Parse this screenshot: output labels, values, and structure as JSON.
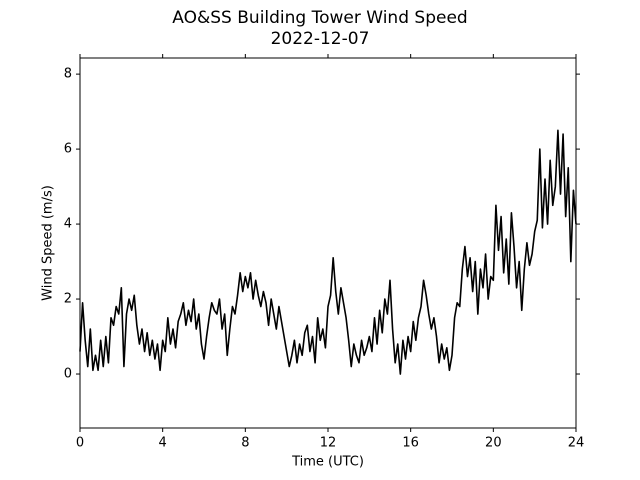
{
  "chart_data": {
    "type": "line",
    "title": "AO&SS Building Tower Wind Speed",
    "subtitle": "2022-12-07",
    "xlabel": "Time (UTC)",
    "ylabel": "Wind Speed (m/s)",
    "xlim": [
      0,
      24
    ],
    "xticks": [
      0,
      4,
      8,
      12,
      16,
      20,
      24
    ],
    "ylim": [
      -1.44,
      8.43
    ],
    "yticks": [
      0,
      2,
      4,
      6,
      8
    ],
    "grid": false,
    "series": [
      {
        "color": "#000000",
        "x": [
          0,
          0.125,
          0.25,
          0.375,
          0.5,
          0.625,
          0.75,
          0.875,
          1,
          1.125,
          1.25,
          1.375,
          1.5,
          1.625,
          1.75,
          1.875,
          2,
          2.125,
          2.25,
          2.375,
          2.5,
          2.625,
          2.75,
          2.875,
          3,
          3.125,
          3.25,
          3.375,
          3.5,
          3.625,
          3.75,
          3.875,
          4,
          4.125,
          4.25,
          4.375,
          4.5,
          4.625,
          4.75,
          4.875,
          5,
          5.125,
          5.25,
          5.375,
          5.5,
          5.625,
          5.75,
          5.875,
          6,
          6.125,
          6.25,
          6.375,
          6.5,
          6.625,
          6.75,
          6.875,
          7,
          7.125,
          7.25,
          7.375,
          7.5,
          7.625,
          7.75,
          7.875,
          8,
          8.125,
          8.25,
          8.375,
          8.5,
          8.625,
          8.75,
          8.875,
          9,
          9.125,
          9.25,
          9.375,
          9.5,
          9.625,
          9.75,
          9.875,
          10,
          10.125,
          10.25,
          10.375,
          10.5,
          10.625,
          10.75,
          10.875,
          11,
          11.125,
          11.25,
          11.375,
          11.5,
          11.625,
          11.75,
          11.875,
          12,
          12.125,
          12.25,
          12.375,
          12.5,
          12.625,
          12.75,
          12.875,
          13,
          13.125,
          13.25,
          13.375,
          13.5,
          13.625,
          13.75,
          13.875,
          14,
          14.125,
          14.25,
          14.375,
          14.5,
          14.625,
          14.75,
          14.875,
          15,
          15.125,
          15.25,
          15.375,
          15.5,
          15.625,
          15.75,
          15.875,
          16,
          16.125,
          16.25,
          16.375,
          16.5,
          16.625,
          16.75,
          16.875,
          17,
          17.125,
          17.25,
          17.375,
          17.5,
          17.625,
          17.75,
          17.875,
          18,
          18.125,
          18.25,
          18.375,
          18.5,
          18.625,
          18.75,
          18.875,
          19,
          19.125,
          19.25,
          19.375,
          19.5,
          19.625,
          19.75,
          19.875,
          20,
          20.125,
          20.25,
          20.375,
          20.5,
          20.625,
          20.75,
          20.875,
          21,
          21.125,
          21.25,
          21.375,
          21.5,
          21.625,
          21.75,
          21.875,
          22,
          22.125,
          22.25,
          22.375,
          22.5,
          22.625,
          22.75,
          22.875,
          23,
          23.125,
          23.25,
          23.375,
          23.5,
          23.625,
          23.75,
          23.875,
          24
        ],
        "values": [
          0.6,
          1.9,
          0.9,
          0.2,
          1.2,
          0.1,
          0.5,
          0.1,
          0.9,
          0.2,
          1.0,
          0.3,
          1.5,
          1.3,
          1.8,
          1.6,
          2.3,
          0.2,
          1.6,
          2.0,
          1.7,
          2.1,
          1.3,
          0.8,
          1.2,
          0.6,
          1.1,
          0.5,
          0.9,
          0.4,
          0.8,
          0.1,
          0.9,
          0.6,
          1.5,
          0.8,
          1.2,
          0.7,
          1.4,
          1.6,
          1.9,
          1.3,
          1.7,
          1.4,
          2.0,
          1.2,
          1.6,
          0.8,
          0.4,
          1.0,
          1.5,
          1.9,
          1.7,
          1.6,
          2.0,
          1.2,
          1.6,
          0.5,
          1.2,
          1.8,
          1.6,
          2.1,
          2.7,
          2.2,
          2.6,
          2.3,
          2.7,
          2.0,
          2.5,
          2.1,
          1.8,
          2.2,
          1.9,
          1.3,
          2.0,
          1.6,
          1.2,
          1.8,
          1.4,
          1.0,
          0.6,
          0.2,
          0.5,
          0.9,
          0.3,
          0.8,
          0.5,
          1.1,
          1.3,
          0.6,
          1.0,
          0.3,
          1.5,
          0.9,
          1.2,
          0.7,
          1.8,
          2.1,
          3.1,
          2.2,
          1.6,
          2.3,
          1.9,
          1.5,
          0.9,
          0.2,
          0.8,
          0.5,
          0.3,
          0.9,
          0.5,
          0.7,
          1.0,
          0.6,
          1.5,
          0.8,
          1.7,
          1.1,
          2.0,
          1.6,
          2.5,
          1.2,
          0.3,
          0.8,
          0.0,
          0.9,
          0.4,
          1.0,
          0.6,
          1.4,
          0.9,
          1.5,
          1.8,
          2.5,
          2.1,
          1.6,
          1.2,
          1.5,
          1.0,
          0.3,
          0.8,
          0.4,
          0.7,
          0.1,
          0.5,
          1.5,
          1.9,
          1.8,
          2.8,
          3.4,
          2.6,
          3.1,
          2.2,
          3.0,
          1.6,
          2.8,
          2.3,
          3.2,
          2.0,
          2.6,
          2.5,
          4.5,
          3.3,
          4.2,
          2.7,
          3.6,
          2.4,
          4.3,
          3.4,
          2.3,
          3.0,
          1.7,
          2.8,
          3.5,
          2.9,
          3.2,
          3.8,
          4.1,
          6.0,
          3.9,
          5.2,
          4.0,
          5.7,
          4.5,
          5.0,
          6.5,
          4.8,
          6.4,
          4.2,
          5.5,
          3.0,
          4.9,
          4.0
        ]
      }
    ]
  }
}
